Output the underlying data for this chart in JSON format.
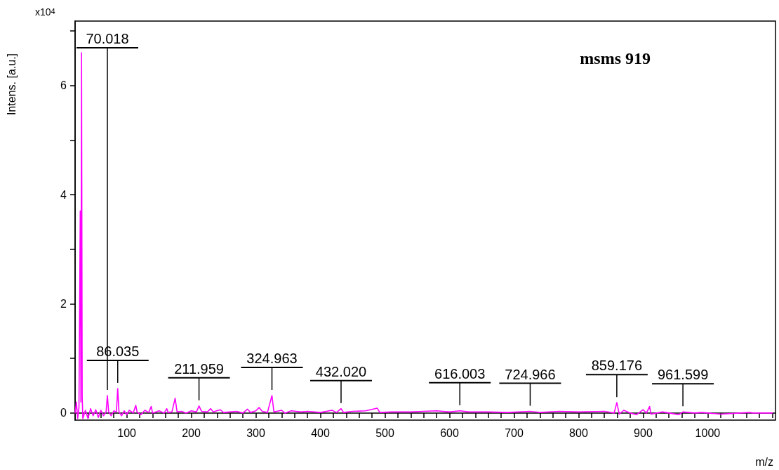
{
  "chart_data": {
    "type": "line",
    "title": "msms 919",
    "xlabel": "m/z",
    "ylabel": "Intens. [a.u.]",
    "annotations": [
      "x10$^{4}$",
      {
        "text": "70.018",
        "x": 70.018,
        "y": 0.32
      },
      {
        "text": "86.035",
        "x": 86.035,
        "y": 0.45
      },
      {
        "text": "211.959",
        "x": 211.959,
        "y": 0.13
      },
      {
        "text": "324.963",
        "x": 324.963,
        "y": 0.32
      },
      {
        "text": "432.020",
        "x": 432.02,
        "y": 0.08
      },
      {
        "text": "616.003",
        "x": 616.003,
        "y": 0.04
      },
      {
        "text": "724.966",
        "x": 724.966,
        "y": 0.03
      },
      {
        "text": "859.176",
        "x": 859.176,
        "y": 0.19
      },
      {
        "text": "961.599",
        "x": 961.599,
        "y": 0.02
      }
    ],
    "x": [
      20,
      22,
      24,
      26,
      28,
      29,
      30,
      31,
      32,
      36,
      40,
      44,
      48,
      52,
      56,
      60,
      64,
      68,
      70.018,
      72,
      76,
      80,
      84,
      86.035,
      88,
      92,
      96,
      100,
      104,
      110,
      114,
      116,
      122,
      128,
      134,
      138,
      140,
      150,
      158,
      162,
      164,
      170,
      175,
      178,
      185,
      192,
      200,
      208,
      211.959,
      216,
      225,
      230,
      234,
      245,
      250,
      260,
      270,
      280,
      287,
      292,
      300,
      305,
      310,
      318,
      324.963,
      328,
      340,
      345,
      355,
      370,
      380,
      400,
      418,
      425,
      432.02,
      436,
      450,
      470,
      488,
      492,
      510,
      540,
      560,
      580,
      600,
      616.003,
      630,
      660,
      690,
      724.966,
      740,
      770,
      800,
      840,
      855,
      859.176,
      863,
      870,
      880,
      890,
      900,
      905,
      910,
      912,
      930,
      940,
      955,
      961.599,
      980,
      990,
      1000,
      1020,
      1065,
      1070,
      1100
    ],
    "series": [
      {
        "color": "#ff00ff",
        "values": [
          0,
          0.2,
          -0.1,
          0.1,
          3.7,
          0.2,
          6.6,
          0.3,
          -0.1,
          0.05,
          -0.1,
          0.08,
          -0.05,
          0.06,
          -0.08,
          0.05,
          -0.05,
          0.02,
          0.32,
          0.02,
          -0.05,
          0.04,
          0.02,
          0.45,
          0.02,
          -0.05,
          0.04,
          -0.03,
          0.05,
          0,
          0.14,
          0.02,
          -0.03,
          0.05,
          0.01,
          0.12,
          0,
          0.04,
          0,
          0.08,
          0.01,
          0.02,
          0.27,
          0.02,
          0.03,
          0,
          0.04,
          0.02,
          0.13,
          0.03,
          0.02,
          0.08,
          0.02,
          0.06,
          0.01,
          0.02,
          0.03,
          0,
          0.07,
          0.01,
          0.04,
          0.1,
          0.03,
          0.01,
          0.32,
          0.02,
          0.05,
          0,
          0.04,
          0.02,
          0.03,
          0.01,
          0.05,
          0.01,
          0.08,
          0.01,
          0.03,
          0.04,
          0.09,
          0.01,
          0.02,
          0.02,
          0.03,
          0.04,
          0.02,
          0.04,
          0.02,
          0.02,
          0.01,
          0.03,
          0.01,
          0.03,
          0.02,
          0.03,
          0,
          0.19,
          -0.02,
          0.05,
          0,
          -0.03,
          0.06,
          0,
          0.12,
          -0.02,
          0.02,
          0,
          -0.03,
          0.02,
          0,
          0.01,
          0,
          -0.02,
          0.01,
          0,
          0
        ]
      }
    ],
    "xlim": [
      20,
      1105
    ],
    "xticks": [
      {
        "value": 40,
        "label": null
      },
      {
        "value": 60,
        "label": null
      },
      {
        "value": 80,
        "label": null
      },
      100,
      {
        "value": 120,
        "label": null
      },
      {
        "value": 140,
        "label": null
      },
      {
        "value": 160,
        "label": null
      },
      {
        "value": 180,
        "label": null
      },
      200,
      {
        "value": 220,
        "label": null
      },
      {
        "value": 240,
        "label": null
      },
      {
        "value": 260,
        "label": null
      },
      {
        "value": 280,
        "label": null
      },
      300,
      {
        "value": 320,
        "label": null
      },
      {
        "value": 340,
        "label": null
      },
      {
        "value": 360,
        "label": null
      },
      {
        "value": 380,
        "label": null
      },
      400,
      {
        "value": 420,
        "label": null
      },
      {
        "value": 440,
        "label": null
      },
      {
        "value": 460,
        "label": null
      },
      {
        "value": 480,
        "label": null
      },
      500,
      {
        "value": 520,
        "label": null
      },
      {
        "value": 540,
        "label": null
      },
      {
        "value": 560,
        "label": null
      },
      {
        "value": 580,
        "label": null
      },
      600,
      {
        "value": 620,
        "label": null
      },
      {
        "value": 640,
        "label": null
      },
      {
        "value": 660,
        "label": null
      },
      {
        "value": 680,
        "label": null
      },
      700,
      {
        "value": 720,
        "label": null
      },
      {
        "value": 740,
        "label": null
      },
      {
        "value": 760,
        "label": null
      },
      {
        "value": 780,
        "label": null
      },
      800,
      {
        "value": 820,
        "label": null
      },
      {
        "value": 840,
        "label": null
      },
      {
        "value": 860,
        "label": null
      },
      {
        "value": 880,
        "label": null
      },
      900,
      {
        "value": 920,
        "label": null
      },
      {
        "value": 940,
        "label": null
      },
      {
        "value": 960,
        "label": null
      },
      {
        "value": 980,
        "label": null
      },
      1000,
      {
        "value": 1020,
        "label": null
      },
      {
        "value": 1040,
        "label": null
      },
      {
        "value": 1060,
        "label": null
      },
      {
        "value": 1080,
        "label": null
      },
      {
        "value": 1100,
        "label": null
      }
    ],
    "ylim": [
      -0.13,
      7.18
    ],
    "yticks": [
      0,
      {
        "value": 1,
        "label": null
      },
      2,
      {
        "value": 3,
        "label": null
      },
      4,
      {
        "value": 5,
        "label": null
      },
      6,
      {
        "value": 7,
        "label": null
      }
    ],
    "marker": "none",
    "line_style": "solid"
  }
}
